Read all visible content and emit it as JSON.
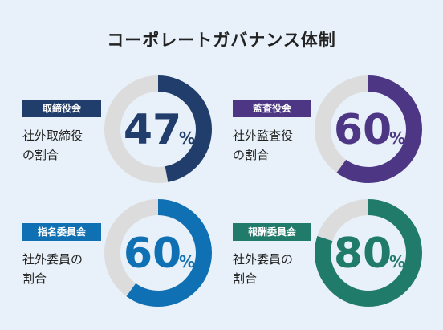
{
  "title": "コーポレートガバナンス体制",
  "chart_data": [
    {
      "type": "pie",
      "label": "取締役会",
      "desc_line1": "社外取締役",
      "desc_line2": "の割合",
      "value": 47,
      "unit": "%",
      "color": "#213d6b"
    },
    {
      "type": "pie",
      "label": "監査役会",
      "desc_line1": "社外監査役",
      "desc_line2": "の割合",
      "value": 60,
      "unit": "%",
      "color": "#4d3684"
    },
    {
      "type": "pie",
      "label": "指名委員会",
      "desc_line1": "社外委員の",
      "desc_line2": "割合",
      "value": 60,
      "unit": "%",
      "color": "#0f71b3"
    },
    {
      "type": "pie",
      "label": "報酬委員会",
      "desc_line1": "社外委員の",
      "desc_line2": "割合",
      "value": 80,
      "unit": "%",
      "color": "#217b6b"
    }
  ],
  "colors": {
    "track": "#dcdcdc",
    "background": "#e8f1f9"
  }
}
